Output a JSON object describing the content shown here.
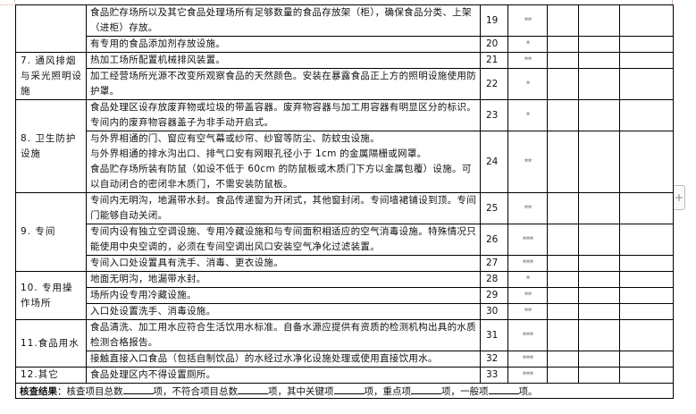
{
  "rows": [
    {
      "category": "",
      "desc": "食品贮存场所以及其它食品处理场所有足够数量的食品存放架（柜），确保食品分类、上架（进柜）存放。",
      "num": "19",
      "level": "**"
    },
    {
      "desc": "有专用的食品添加剂存放设施。",
      "num": "20",
      "level": "*"
    },
    {
      "category": "7. 通风排烟与采光照明设施",
      "desc": "热加工场所配置机械排风装置。",
      "num": "21",
      "level": "**"
    },
    {
      "desc": "加工经营场所光源不改变所观察食品的天然颜色。安装在暴露食品正上方的照明设施使用防护罩。",
      "num": "22",
      "level": "*"
    },
    {
      "category": "8. 卫生防护设施",
      "desc": "食品处理区设存放废弃物或垃圾的带盖容器。废弃物容器与加工用容器有明显区分的标识。专间内的废弃物容器盖子为非手动开启式。",
      "num": "23",
      "level": "*"
    },
    {
      "desc_lines": [
        "与外界相通的门、窗应有空气幕或纱帘、纱窗等防尘、防蚊虫设施。",
        "与外界相通的排水沟出口、排气口安有网眼孔径小于 1cm 的金属隔栅或网罩。",
        "食品贮存场所装有防鼠（如设不低于 60cm 的防鼠板或木质门下方以金属包覆）设施。可以自动闭合的密闭非木质门，不需安装防鼠板。"
      ],
      "num": "24",
      "level": "**"
    },
    {
      "category": "9. 专间",
      "desc": "专间内无明沟，地漏带水封。食品传递窗为开闭式，其他窗封闭。专间墙裙铺设到顶。专间门能够自动关闭。",
      "num": "25",
      "level": "**"
    },
    {
      "desc": "专间内设有独立空调设施、专用冷藏设施和与专间面积相适应的空气消毒设施。特殊情况只能使用中央空调的，必须在专间空调出风口安装空气净化过滤装置。",
      "num": "26",
      "level": "***"
    },
    {
      "desc": "专间入口处设置具有洗手、消毒、更衣设施。",
      "num": "27",
      "level": "***"
    },
    {
      "category": "10. 专用操作场所",
      "desc": "地面无明沟，地漏带水封。",
      "num": "28",
      "level": "*"
    },
    {
      "desc": "场所内设专用冷藏设施。",
      "num": "29",
      "level": "**"
    },
    {
      "desc": "入口处设置洗手、消毒设施。",
      "num": "30",
      "level": "**"
    },
    {
      "category": "11.食品用水",
      "desc": "食品清洗、加工用水应符合生活饮用水标准。自备水源应提供有资质的检测机构出具的水质检测合格报告。",
      "num": "31",
      "level": "***"
    },
    {
      "desc": "接触直接入口食品（包括自制饮品）的水经过水净化设施处理或使用直接饮用水。",
      "num": "32",
      "level": "***"
    },
    {
      "category": "12.其它",
      "desc": "食品处理区内不得设置厕所。",
      "num": "33",
      "level": "***"
    }
  ],
  "summary": {
    "label": "核查结果",
    "p1": "：核查项目总数",
    "p2": "项，不符合项目总数",
    "p3": "项，其中关键项",
    "p4": "项，重点项",
    "p5": "项，一般项",
    "p6": "项。"
  },
  "add_button": "+"
}
